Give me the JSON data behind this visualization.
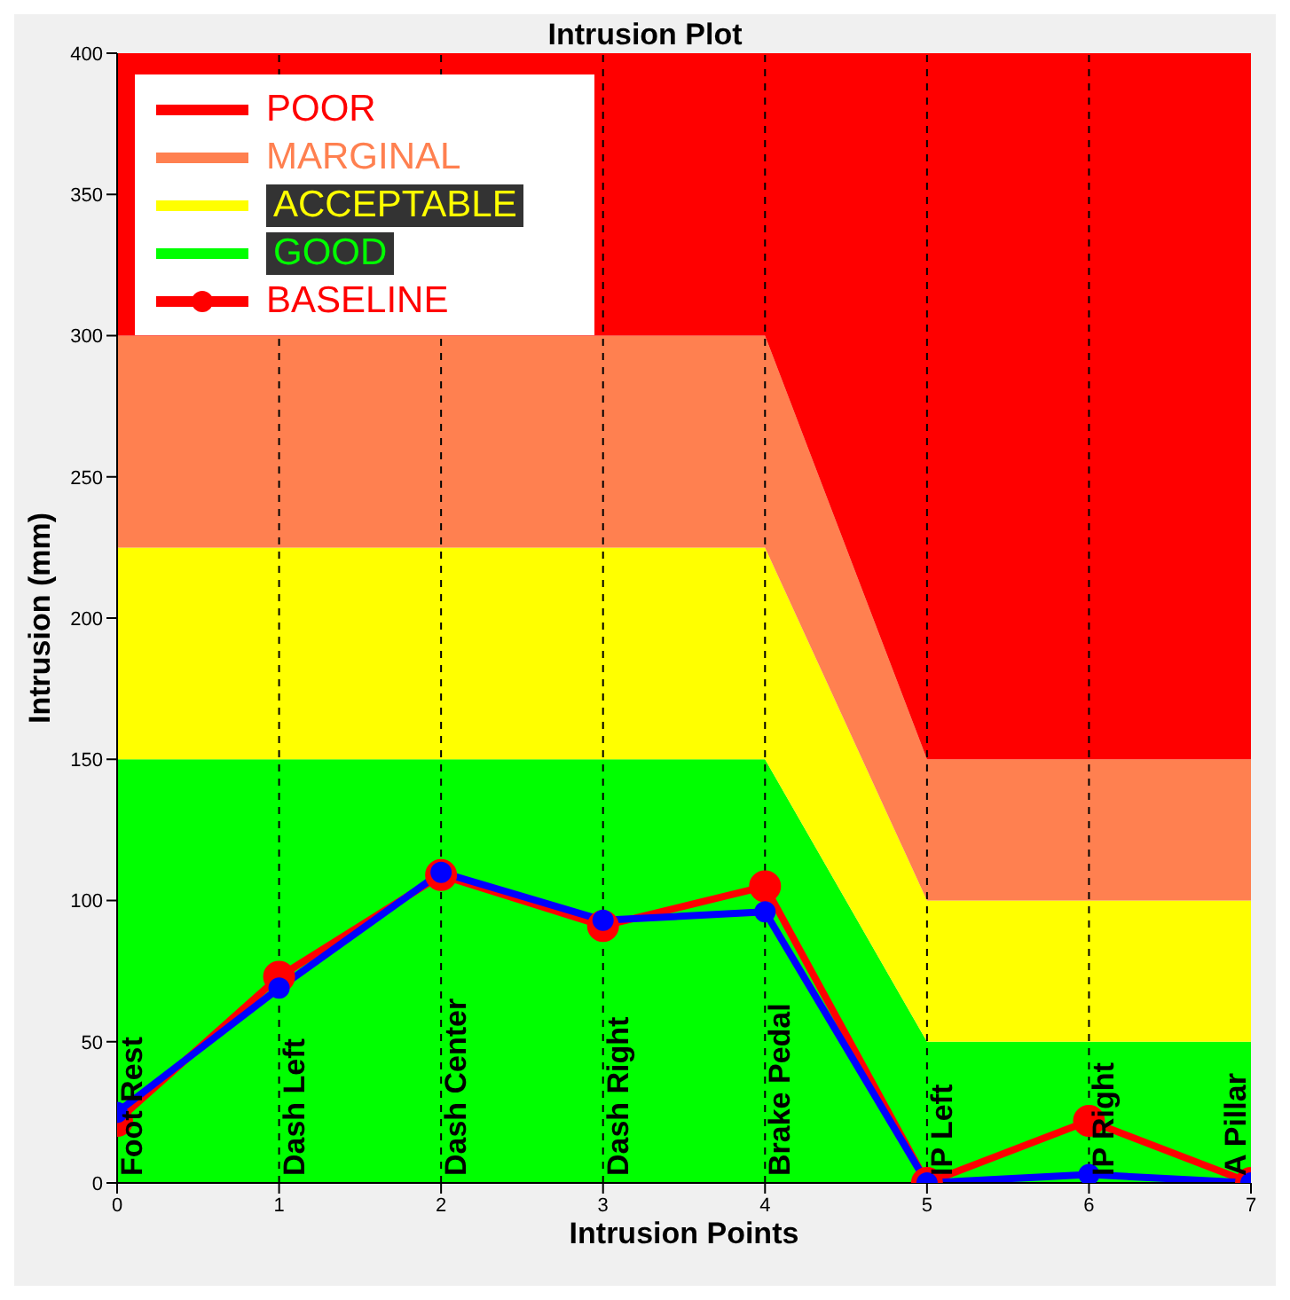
{
  "chart_data": {
    "type": "area",
    "title": "Intrusion Plot",
    "xlabel": "Intrusion Points",
    "ylabel": "Intrusion (mm)",
    "x": [
      0,
      1,
      2,
      3,
      4,
      5,
      6,
      7
    ],
    "stacked": true,
    "series": [
      {
        "name": "GOOD",
        "color": "#00ff00",
        "values": [
          150,
          150,
          150,
          150,
          150,
          50,
          50,
          50
        ]
      },
      {
        "name": "ACCEPTABLE",
        "color": "#ffff00",
        "values": [
          75,
          75,
          75,
          75,
          75,
          50,
          50,
          50
        ]
      },
      {
        "name": "MARGINAL",
        "color": "#ff8050",
        "values": [
          75,
          75,
          75,
          75,
          75,
          50,
          50,
          50
        ]
      },
      {
        "name": "POOR",
        "color": "#ff0000",
        "values": [
          100,
          100,
          100,
          100,
          100,
          250,
          250,
          250
        ]
      },
      {
        "type": "line",
        "name": "BASELINE",
        "color": "#ff0000",
        "marker": "circle",
        "values": [
          22,
          73,
          109,
          91,
          105,
          0,
          22,
          0
        ]
      },
      {
        "type": "line",
        "color": "#0000ff",
        "marker": "circle",
        "values": [
          25,
          69,
          110,
          93,
          96,
          0,
          3,
          0
        ]
      }
    ],
    "line_style": "solid",
    "xlim": [
      0,
      7
    ],
    "xticks": [
      0,
      1,
      2,
      3,
      4,
      5,
      6,
      7
    ],
    "ylim": [
      0,
      400
    ],
    "yticks": [
      0,
      50,
      100,
      150,
      200,
      250,
      300,
      350,
      400
    ],
    "grid": false,
    "legend": "top left",
    "ref_lines": [
      {
        "axis": "x",
        "value": 1,
        "line_style": "dashed"
      },
      {
        "axis": "x",
        "value": 2,
        "line_style": "dashed"
      },
      {
        "axis": "x",
        "value": 3,
        "line_style": "dashed"
      },
      {
        "axis": "x",
        "value": 4,
        "line_style": "dashed"
      },
      {
        "axis": "x",
        "value": 5,
        "line_style": "dashed"
      },
      {
        "axis": "x",
        "value": 6,
        "line_style": "dashed"
      }
    ],
    "annotations": [
      {
        "text": "Foot Rest",
        "x": 0,
        "y": 0
      },
      {
        "text": "Dash Left",
        "x": 1,
        "y": 0
      },
      {
        "text": "Dash Center",
        "x": 2,
        "y": 0
      },
      {
        "text": "Dash Right",
        "x": 3,
        "y": 0
      },
      {
        "text": "Brake Pedal",
        "x": 4,
        "y": 0
      },
      {
        "text": "IP Left",
        "x": 5,
        "y": 0
      },
      {
        "text": "IP Right",
        "x": 6,
        "y": 0
      },
      {
        "text": "A Pillar",
        "x": 7,
        "y": 0
      }
    ]
  }
}
